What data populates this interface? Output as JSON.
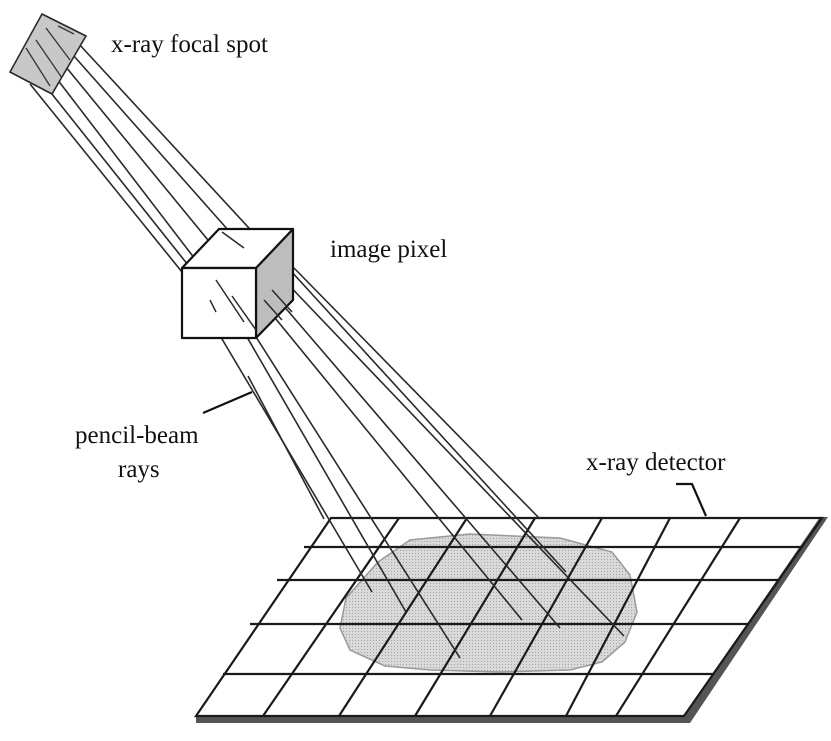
{
  "labels": {
    "focal_spot": "x-ray focal spot",
    "image_pixel": "image pixel",
    "pencil_beam_line1": "pencil-beam",
    "pencil_beam_line2": "rays",
    "detector": "x-ray detector"
  },
  "colors": {
    "line": "#2a2a2a",
    "focal_spot_fill": "#c8c8c8",
    "cube_side_fill": "#bdbdbd",
    "shadow_fill": "#d6d6d6",
    "plate_edge": "#555555"
  }
}
